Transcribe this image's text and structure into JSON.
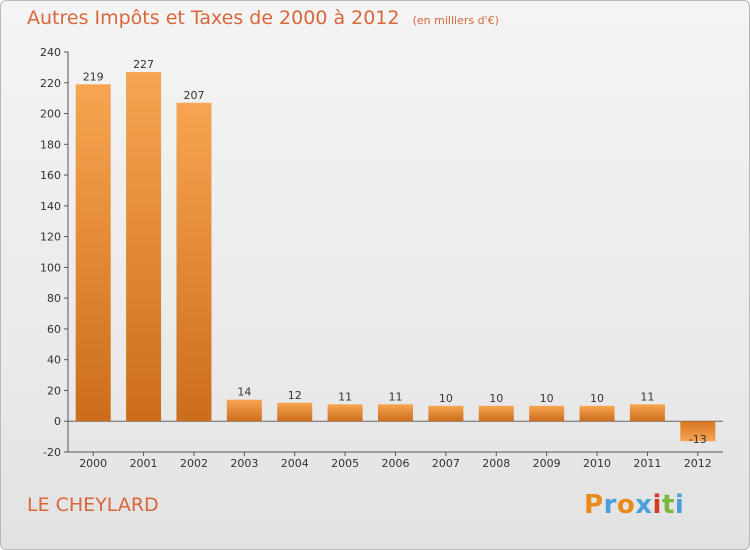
{
  "chart_data": {
    "type": "bar",
    "title": "Autres Impôts et Taxes de 2000 à 2012",
    "subtitle": "(en milliers d'€)",
    "categories": [
      "2000",
      "2001",
      "2002",
      "2003",
      "2004",
      "2005",
      "2006",
      "2007",
      "2008",
      "2009",
      "2010",
      "2011",
      "2012"
    ],
    "values": [
      219,
      227,
      207,
      14,
      12,
      11,
      11,
      10,
      10,
      10,
      10,
      11,
      -13
    ],
    "ylim": [
      -20,
      240
    ],
    "yticks": [
      -20,
      0,
      20,
      40,
      60,
      80,
      100,
      120,
      140,
      160,
      180,
      200,
      220,
      240
    ],
    "grid": false,
    "bar_color": "#f0943c"
  },
  "footer": {
    "place": "LE CHEYLARD",
    "logo_letters": [
      "P",
      "r",
      "o",
      "x",
      "i",
      "t",
      "i"
    ],
    "logo_colors": [
      "#e88a1a",
      "#4aa0d8",
      "#e88a1a",
      "#4aa0d8",
      "#d23a2a",
      "#7ab83a",
      "#4aa0d8"
    ]
  }
}
